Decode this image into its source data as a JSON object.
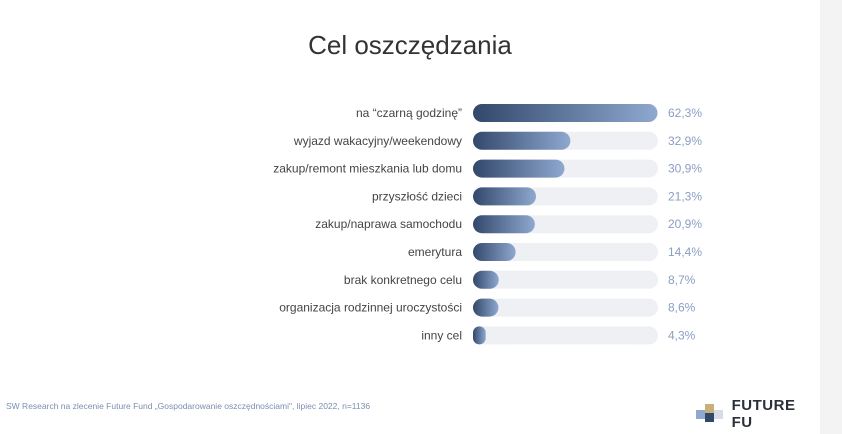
{
  "title": "Cel oszczędzania",
  "footnote": "SW Research na zlecenie Future Fund „Gospodarowanie oszczędnościami\", lipiec 2022, n=1136",
  "logo": {
    "text": "FUTURE FU"
  },
  "colors": {
    "bar_start": "#32486b",
    "bar_end": "#8fa8cf",
    "track": "#eef0f4",
    "value_text": "#8a9ec4",
    "label_text": "#444444"
  },
  "chart_data": {
    "type": "bar",
    "orientation": "horizontal",
    "categories": [
      "na “czarną godzinę”",
      "wyjazd wakacyjny/weekendowy",
      "zakup/remont mieszkania lub domu",
      "przyszłość dzieci",
      "zakup/naprawa samochodu",
      "emerytura",
      "brak konkretnego celu",
      "organizacja rodzinnej uroczystości",
      "inny cel"
    ],
    "values": [
      62.3,
      32.9,
      30.9,
      21.3,
      20.9,
      14.4,
      8.7,
      8.6,
      4.3
    ],
    "value_labels": [
      "62,3%",
      "32,9%",
      "30,9%",
      "21,3%",
      "20,9%",
      "14,4%",
      "8,7%",
      "8,6%",
      "4,3%"
    ],
    "xlim": [
      0,
      100
    ],
    "grid": false,
    "legend": "none"
  }
}
